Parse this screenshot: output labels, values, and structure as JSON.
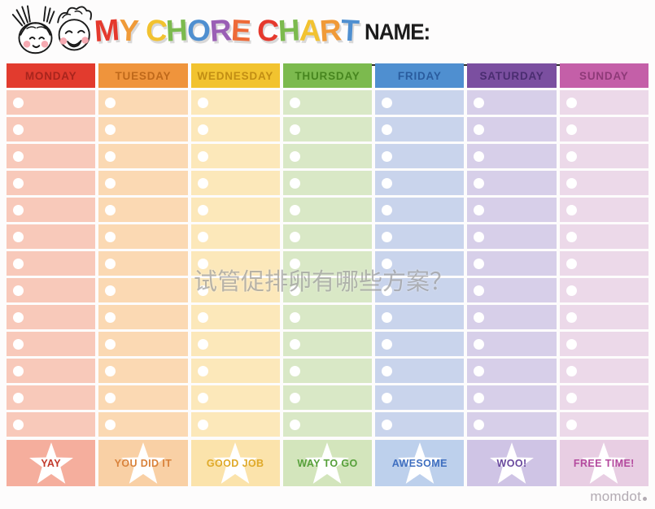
{
  "header": {
    "title_letters": [
      {
        "ch": "M",
        "color": "#e5392d"
      },
      {
        "ch": "Y",
        "color": "#f09a38"
      },
      {
        "ch": " "
      },
      {
        "ch": "C",
        "color": "#f2c230"
      },
      {
        "ch": "H",
        "color": "#7cba4e"
      },
      {
        "ch": "O",
        "color": "#4f8fd0"
      },
      {
        "ch": "R",
        "color": "#9a5fb5"
      },
      {
        "ch": "E",
        "color": "#ee6a38"
      },
      {
        "ch": " "
      },
      {
        "ch": "C",
        "color": "#e5392d"
      },
      {
        "ch": "H",
        "color": "#7cba4e"
      },
      {
        "ch": "A",
        "color": "#f2c230"
      },
      {
        "ch": "R",
        "color": "#f09a38"
      },
      {
        "ch": "T",
        "color": "#4f8fd0"
      }
    ],
    "name_label": "NAME:"
  },
  "table": {
    "rows_per_column": 13,
    "days": [
      {
        "label": "MONDAY",
        "header_bg": "#e23b2e",
        "header_fg": "#a8251d",
        "cell_bg": "#f8c9ba",
        "footer_bg": "#f5ae9d",
        "footer_label": "YAY",
        "footer_fg": "#c23a2c"
      },
      {
        "label": "TUESDAY",
        "header_bg": "#ef943c",
        "header_fg": "#bf691b",
        "cell_bg": "#fbd9b3",
        "footer_bg": "#f9d0a5",
        "footer_label": "YOU DID IT",
        "footer_fg": "#d9823b"
      },
      {
        "label": "WEDNESDAY",
        "header_bg": "#f2c32f",
        "header_fg": "#c28e14",
        "cell_bg": "#fce8ba",
        "footer_bg": "#fbe3ab",
        "footer_label": "GOOD JOB",
        "footer_fg": "#dfa928"
      },
      {
        "label": "THURSDAY",
        "header_bg": "#7cba4e",
        "header_fg": "#47861f",
        "cell_bg": "#d9e8c6",
        "footer_bg": "#d3e5bc",
        "footer_label": "WAY TO GO",
        "footer_fg": "#57a03b"
      },
      {
        "label": "FRIDAY",
        "header_bg": "#4f8fd0",
        "header_fg": "#2a5c9e",
        "cell_bg": "#c9d4ec",
        "footer_bg": "#bdd0ec",
        "footer_label": "AWESOME",
        "footer_fg": "#3f6fc0"
      },
      {
        "label": "SATURDAY",
        "header_bg": "#7b4fa0",
        "header_fg": "#4a2d70",
        "cell_bg": "#d7cfe9",
        "footer_bg": "#cfc4e5",
        "footer_label": "WOO!",
        "footer_fg": "#6a4a9e"
      },
      {
        "label": "SUNDAY",
        "header_bg": "#c45fa8",
        "header_fg": "#8e3a78",
        "cell_bg": "#ecd9e9",
        "footer_bg": "#e8cee3",
        "footer_label": "FREE TIME!",
        "footer_fg": "#b44a9e"
      }
    ]
  },
  "watermark": {
    "text": "试管促排卵有哪些方案？"
  },
  "brand": {
    "text": "momdot"
  },
  "icons": {
    "check_circle": "white-circle",
    "reward_star": "white-star",
    "kids": "girl-and-boy-faces"
  }
}
